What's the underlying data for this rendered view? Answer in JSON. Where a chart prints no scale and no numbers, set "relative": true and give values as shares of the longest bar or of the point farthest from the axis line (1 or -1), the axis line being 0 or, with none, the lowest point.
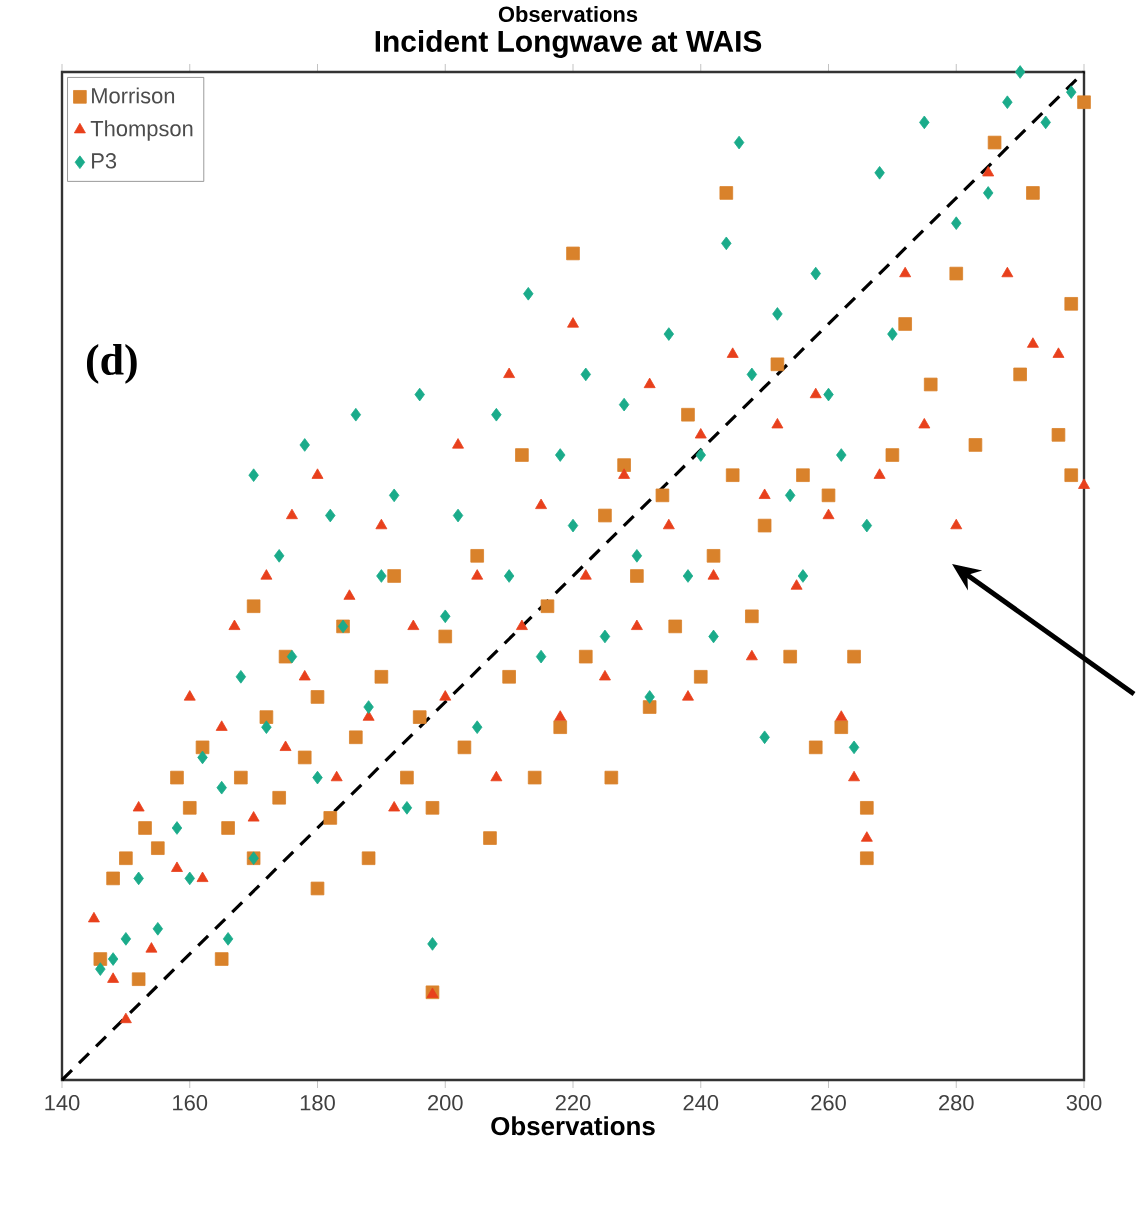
{
  "chart_data": {
    "type": "scatter",
    "title": "Incident Longwave at WAIS",
    "xlabel": "Observations",
    "annotations": [
      "Observations",
      "(d)"
    ],
    "relative": true,
    "xlim": [
      140,
      300
    ],
    "xticks": [
      140,
      160,
      180,
      200,
      220,
      240,
      260,
      280,
      300
    ],
    "legend": "top left",
    "series": [
      {
        "name": "Morrison",
        "color": "#d9822b",
        "marker": "square",
        "x": [
          146,
          148,
          150,
          152,
          153,
          155,
          158,
          160,
          162,
          165,
          166,
          168,
          170,
          170,
          172,
          174,
          175,
          178,
          180,
          180,
          182,
          184,
          186,
          188,
          190,
          192,
          194,
          196,
          198,
          198,
          200,
          203,
          205,
          207,
          210,
          212,
          214,
          216,
          218,
          220,
          222,
          225,
          226,
          228,
          230,
          232,
          234,
          236,
          238,
          240,
          242,
          244,
          245,
          248,
          250,
          252,
          254,
          256,
          258,
          260,
          262,
          264,
          266,
          266,
          270,
          272,
          276,
          280,
          283,
          286,
          290,
          292,
          296,
          298,
          298,
          300
        ],
        "values": [
          0.12,
          0.2,
          0.22,
          0.1,
          0.25,
          0.23,
          0.3,
          0.27,
          0.33,
          0.12,
          0.25,
          0.3,
          0.22,
          0.47,
          0.36,
          0.28,
          0.42,
          0.32,
          0.19,
          0.38,
          0.26,
          0.45,
          0.34,
          0.22,
          0.4,
          0.5,
          0.3,
          0.36,
          0.087,
          0.27,
          0.44,
          0.33,
          0.52,
          0.24,
          0.4,
          0.62,
          0.3,
          0.47,
          0.35,
          0.82,
          0.42,
          0.56,
          0.3,
          0.61,
          0.5,
          0.37,
          0.58,
          0.45,
          0.66,
          0.4,
          0.52,
          0.88,
          0.6,
          0.46,
          0.55,
          0.71,
          0.42,
          0.6,
          0.33,
          0.58,
          0.35,
          0.42,
          0.22,
          0.27,
          0.62,
          0.75,
          0.69,
          0.8,
          0.63,
          0.93,
          0.7,
          0.88,
          0.64,
          0.6,
          0.77,
          0.97
        ]
      },
      {
        "name": "Thompson",
        "color": "#e8401c",
        "marker": "triangle",
        "x": [
          145,
          148,
          150,
          152,
          154,
          158,
          160,
          162,
          165,
          167,
          170,
          172,
          175,
          176,
          178,
          180,
          183,
          185,
          188,
          190,
          192,
          195,
          198,
          200,
          202,
          205,
          208,
          210,
          212,
          215,
          218,
          220,
          222,
          225,
          228,
          230,
          232,
          235,
          238,
          240,
          242,
          245,
          248,
          250,
          252,
          255,
          258,
          260,
          262,
          264,
          266,
          268,
          272,
          275,
          280,
          285,
          288,
          292,
          296,
          300
        ],
        "values": [
          0.16,
          0.1,
          0.06,
          0.27,
          0.13,
          0.21,
          0.38,
          0.2,
          0.35,
          0.45,
          0.26,
          0.5,
          0.33,
          0.56,
          0.4,
          0.6,
          0.3,
          0.48,
          0.36,
          0.55,
          0.27,
          0.45,
          0.085,
          0.38,
          0.63,
          0.5,
          0.3,
          0.7,
          0.45,
          0.57,
          0.36,
          0.75,
          0.5,
          0.4,
          0.6,
          0.45,
          0.69,
          0.55,
          0.38,
          0.64,
          0.5,
          0.72,
          0.42,
          0.58,
          0.65,
          0.49,
          0.68,
          0.56,
          0.36,
          0.3,
          0.24,
          0.6,
          0.8,
          0.65,
          0.55,
          0.9,
          0.8,
          0.73,
          0.72,
          0.59
        ]
      },
      {
        "name": "P3",
        "color": "#1aab8a",
        "marker": "diamond",
        "x": [
          146,
          148,
          150,
          152,
          155,
          158,
          160,
          162,
          165,
          166,
          168,
          170,
          170,
          172,
          174,
          176,
          178,
          180,
          182,
          184,
          186,
          188,
          190,
          192,
          194,
          196,
          198,
          200,
          202,
          205,
          208,
          210,
          213,
          215,
          218,
          220,
          222,
          225,
          228,
          230,
          232,
          235,
          238,
          240,
          242,
          244,
          246,
          248,
          250,
          252,
          254,
          256,
          258,
          260,
          262,
          264,
          266,
          268,
          270,
          275,
          280,
          285,
          288,
          290,
          294,
          298
        ],
        "values": [
          0.11,
          0.12,
          0.14,
          0.2,
          0.15,
          0.25,
          0.2,
          0.32,
          0.29,
          0.14,
          0.4,
          0.22,
          0.6,
          0.35,
          0.52,
          0.42,
          0.63,
          0.3,
          0.56,
          0.45,
          0.66,
          0.37,
          0.5,
          0.58,
          0.27,
          0.68,
          0.135,
          0.46,
          0.56,
          0.35,
          0.66,
          0.5,
          0.78,
          0.42,
          0.62,
          0.55,
          0.7,
          0.44,
          0.67,
          0.52,
          0.38,
          0.74,
          0.5,
          0.62,
          0.44,
          0.83,
          0.93,
          0.7,
          0.34,
          0.76,
          0.58,
          0.5,
          0.8,
          0.68,
          0.62,
          0.33,
          0.55,
          0.9,
          0.74,
          0.95,
          0.85,
          0.88,
          0.97,
          1.0,
          0.95,
          0.98
        ]
      },
      {
        "type": "line",
        "color": "#000000",
        "marker": "none",
        "line_style": "dashed",
        "x": [
          140,
          300
        ],
        "values": [
          0,
          1
        ]
      }
    ]
  }
}
